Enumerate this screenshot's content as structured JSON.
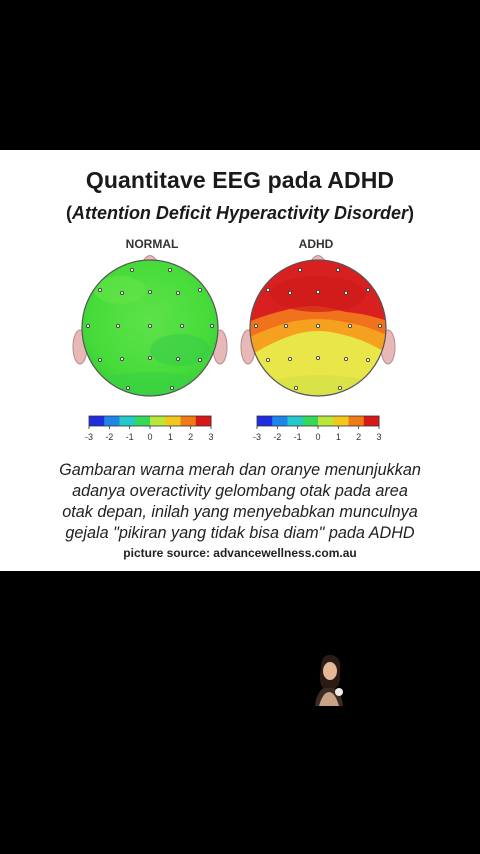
{
  "title": "Quantitave EEG pada ADHD",
  "subtitle": {
    "open_paren": "(",
    "text": "Attention Deficit Hyperactivity Disorder",
    "close_paren": ")"
  },
  "maps": [
    {
      "label": "NORMAL",
      "state": "normal"
    },
    {
      "label": "ADHD",
      "state": "adhd"
    }
  ],
  "scale": {
    "ticks": [
      "-3",
      "-2",
      "-1",
      "0",
      "1",
      "2",
      "3"
    ],
    "colors": [
      "#1f2ce0",
      "#1d86e8",
      "#25c9c9",
      "#35d85a",
      "#b8e63a",
      "#f2c81e",
      "#f07a16",
      "#d81818"
    ]
  },
  "caption_lines": [
    "Gambaran warna merah dan oranye menunjukkan",
    "adanya overactivity gelombang otak pada area",
    "otak depan, inilah yang menyebabkan munculnya",
    "gejala \"pikiran yang tidak bisa diam\" pada ADHD"
  ],
  "source": "picture source: advancewellness.com.au",
  "colors": {
    "background": "#000000",
    "card": "#ffffff",
    "normal_green": "#49de3a",
    "adhd_red": "#d41c1c",
    "adhd_orange": "#f08a1c",
    "adhd_yellow": "#eee03a"
  }
}
